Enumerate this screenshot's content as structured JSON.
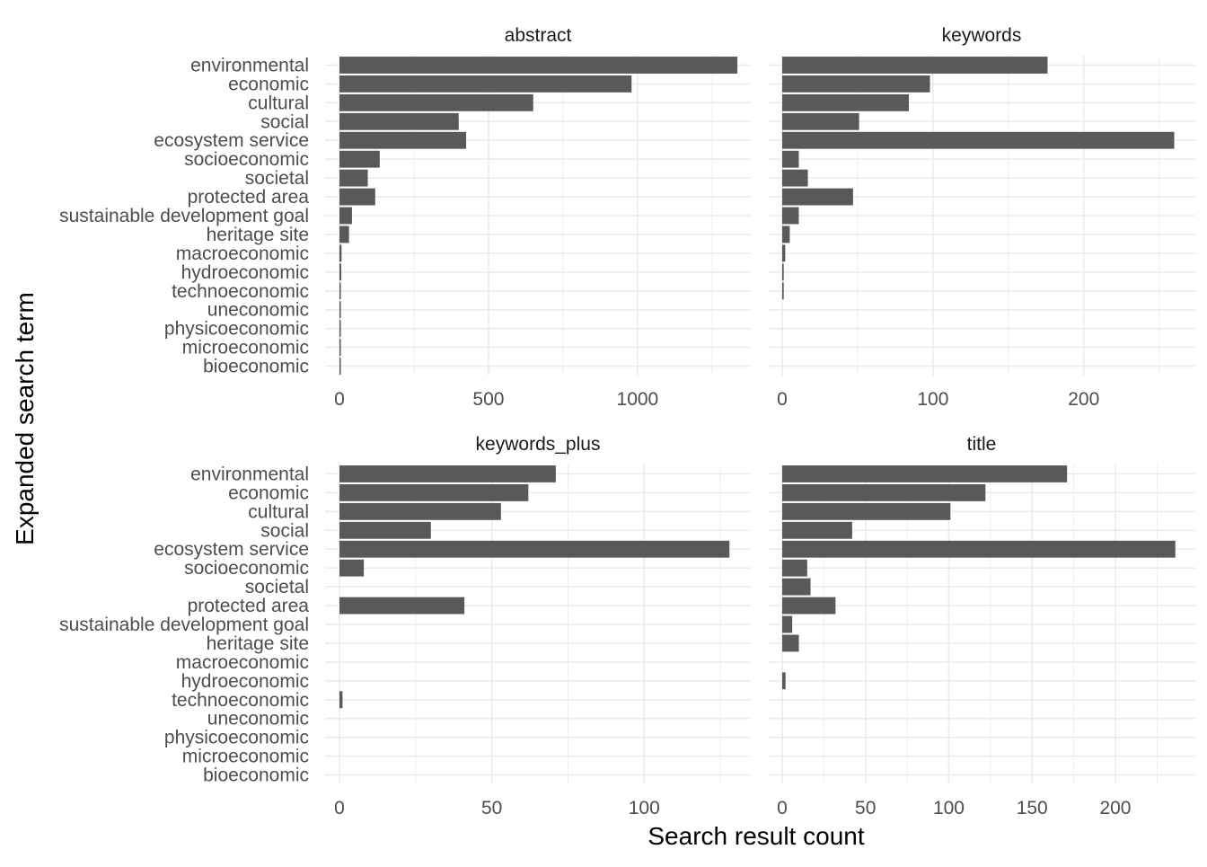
{
  "chart_data": {
    "type": "bar",
    "orientation": "horizontal",
    "facet_layout": "2x2",
    "xlabel": "Search result count",
    "ylabel": "Expanded search term",
    "grid": true,
    "bar_color": "#595959",
    "grid_color": "#ebebeb",
    "categories": [
      "environmental",
      "economic",
      "cultural",
      "social",
      "ecosystem service",
      "socioeconomic",
      "societal",
      "protected area",
      "sustainable development goal",
      "heritage site",
      "macroeconomic",
      "hydroeconomic",
      "technoeconomic",
      "uneconomic",
      "physicoeconomic",
      "microeconomic",
      "bioeconomic"
    ],
    "panels": [
      {
        "title": "abstract",
        "xlim": [
          0,
          1380
        ],
        "xticks": [
          0,
          500,
          1000
        ],
        "values": [
          1335,
          980,
          650,
          400,
          425,
          135,
          95,
          120,
          42,
          32,
          7,
          6,
          3,
          2,
          1,
          1,
          1
        ]
      },
      {
        "title": "keywords",
        "xlim": [
          0,
          274
        ],
        "xticks": [
          0,
          100,
          200
        ],
        "values": [
          176,
          98,
          84,
          51,
          260,
          11,
          17,
          47,
          11,
          5,
          2,
          1,
          1,
          0,
          0,
          0,
          0
        ]
      },
      {
        "title": "keywords_plus",
        "xlim": [
          0,
          135
        ],
        "xticks": [
          0,
          50,
          100
        ],
        "values": [
          71,
          62,
          53,
          30,
          128,
          8,
          0,
          41,
          0,
          0,
          0,
          0,
          1,
          0,
          0,
          0,
          0
        ]
      },
      {
        "title": "title",
        "xlim": [
          0,
          248
        ],
        "xticks": [
          0,
          50,
          100,
          150,
          200
        ],
        "values": [
          171,
          122,
          101,
          42,
          236,
          15,
          17,
          32,
          6,
          10,
          0,
          2,
          0,
          0,
          0,
          0,
          0
        ]
      }
    ]
  }
}
